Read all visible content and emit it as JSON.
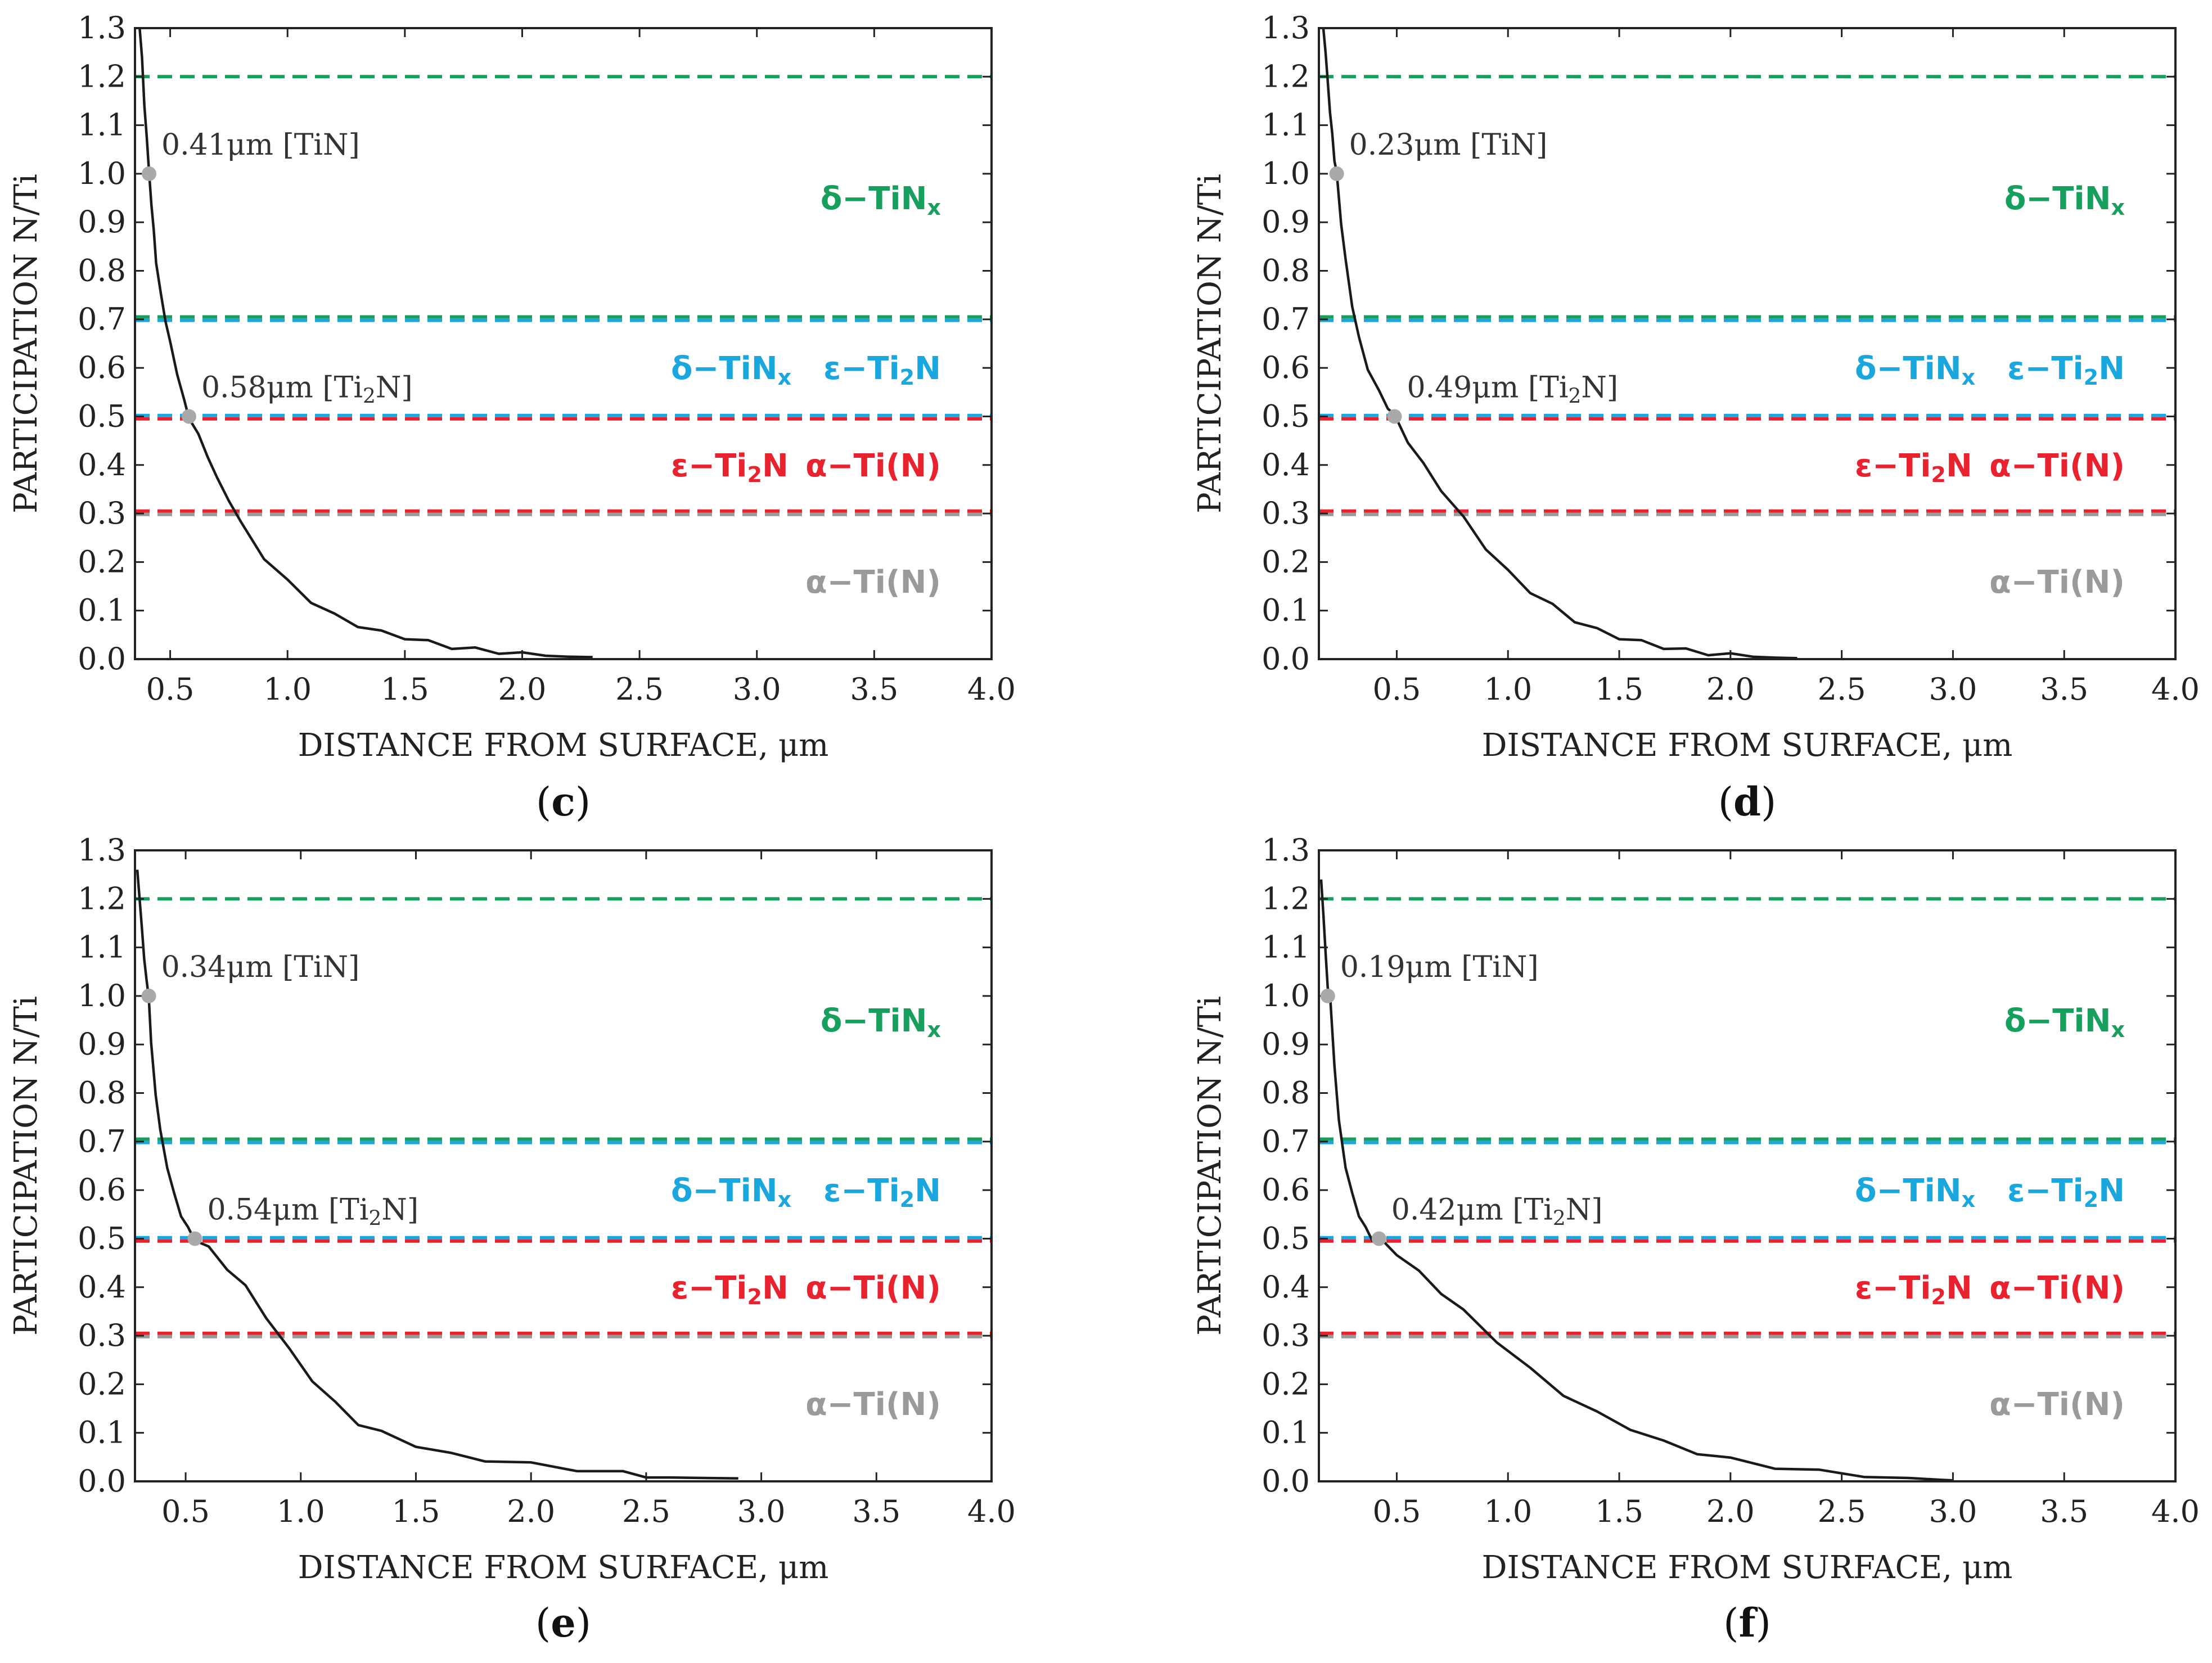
{
  "colors": {
    "green": "#17a05d",
    "cyan": "#1aa7de",
    "red": "#e8232f",
    "gray": "#9a9a9a",
    "curve": "#1a1a1a",
    "marker": "#a9a9a9"
  },
  "chart_data": [
    {
      "type": "line",
      "panel": "(c)",
      "panel_letter": "c",
      "xlabel": "DISTANCE FROM SURFACE, μm",
      "ylabel": "PARTICIPATION  N/Ti",
      "xlim": [
        0.35,
        4.0
      ],
      "ylim": [
        0.0,
        1.3
      ],
      "xticks": [
        "0.5",
        "1.0",
        "1.5",
        "2.0",
        "2.5",
        "3.0",
        "3.5",
        "4.0"
      ],
      "yticks": [
        "0.0",
        "0.1",
        "0.2",
        "0.3",
        "0.4",
        "0.5",
        "0.6",
        "0.7",
        "0.8",
        "0.9",
        "1.0",
        "1.1",
        "1.2",
        "1.3"
      ],
      "grid": false,
      "series": [
        {
          "x": [
            0.37,
            0.38,
            0.39,
            0.4,
            0.41,
            0.42,
            0.43,
            0.44,
            0.46,
            0.48,
            0.5,
            0.53,
            0.56,
            0.58,
            0.62,
            0.66,
            0.7,
            0.75,
            0.8,
            0.9,
            1.0,
            1.1,
            1.2,
            1.3,
            1.4,
            1.5,
            1.6,
            1.7,
            1.8,
            1.9,
            2.0,
            2.1,
            2.2,
            2.3
          ],
          "y": [
            1.3,
            1.24,
            1.14,
            1.08,
            1.0,
            0.94,
            0.88,
            0.82,
            0.75,
            0.7,
            0.65,
            0.59,
            0.53,
            0.5,
            0.46,
            0.42,
            0.37,
            0.33,
            0.28,
            0.21,
            0.16,
            0.12,
            0.09,
            0.07,
            0.055,
            0.045,
            0.035,
            0.025,
            0.02,
            0.015,
            0.01,
            0.007,
            0.005,
            0.004
          ]
        }
      ],
      "annotations": [
        {
          "x": 0.41,
          "y": 1.0,
          "text": "0.41μm [TiN]"
        },
        {
          "x": 0.58,
          "y": 0.5,
          "text": "0.58μm [Ti",
          "sub": "2",
          "tail": "N]"
        }
      ]
    },
    {
      "type": "line",
      "panel": "(d)",
      "panel_letter": "d",
      "xlabel": "DISTANCE FROM SURFACE, μm",
      "ylabel": "PARTICIPATION  N/Ti",
      "xlim": [
        0.15,
        4.0
      ],
      "ylim": [
        0.0,
        1.3
      ],
      "xticks": [
        "0.5",
        "1.0",
        "1.5",
        "2.0",
        "2.5",
        "3.0",
        "3.5",
        "4.0"
      ],
      "yticks": [
        "0.0",
        "0.1",
        "0.2",
        "0.3",
        "0.4",
        "0.5",
        "0.6",
        "0.7",
        "0.8",
        "0.9",
        "1.0",
        "1.1",
        "1.2",
        "1.3"
      ],
      "grid": false,
      "series": [
        {
          "x": [
            0.17,
            0.18,
            0.19,
            0.2,
            0.21,
            0.22,
            0.23,
            0.25,
            0.27,
            0.3,
            0.33,
            0.37,
            0.42,
            0.46,
            0.49,
            0.55,
            0.62,
            0.7,
            0.8,
            0.9,
            1.0,
            1.1,
            1.2,
            1.3,
            1.4,
            1.5,
            1.6,
            1.7,
            1.8,
            1.9,
            2.0,
            2.1,
            2.2,
            2.3
          ],
          "y": [
            1.3,
            1.25,
            1.19,
            1.13,
            1.08,
            1.03,
            1.0,
            0.9,
            0.82,
            0.73,
            0.66,
            0.6,
            0.55,
            0.52,
            0.5,
            0.45,
            0.4,
            0.35,
            0.29,
            0.23,
            0.18,
            0.14,
            0.11,
            0.08,
            0.06,
            0.045,
            0.035,
            0.025,
            0.018,
            0.012,
            0.008,
            0.005,
            0.003,
            0.002
          ]
        }
      ],
      "annotations": [
        {
          "x": 0.23,
          "y": 1.0,
          "text": "0.23μm [TiN]"
        },
        {
          "x": 0.49,
          "y": 0.5,
          "text": "0.49μm [Ti",
          "sub": "2",
          "tail": "N]"
        }
      ]
    },
    {
      "type": "line",
      "panel": "(e)",
      "panel_letter": "e",
      "xlabel": "DISTANCE FROM SURFACE, μm",
      "ylabel": "PARTICIPATION  N/Ti",
      "xlim": [
        0.28,
        4.0
      ],
      "ylim": [
        0.0,
        1.3
      ],
      "xticks": [
        "0.5",
        "1.0",
        "1.5",
        "2.0",
        "2.5",
        "3.0",
        "3.5",
        "4.0"
      ],
      "yticks": [
        "0.0",
        "0.1",
        "0.2",
        "0.3",
        "0.4",
        "0.5",
        "0.6",
        "0.7",
        "0.8",
        "0.9",
        "1.0",
        "1.1",
        "1.2",
        "1.3"
      ],
      "grid": false,
      "series": [
        {
          "x": [
            0.29,
            0.3,
            0.31,
            0.32,
            0.33,
            0.34,
            0.35,
            0.37,
            0.39,
            0.42,
            0.45,
            0.48,
            0.51,
            0.54,
            0.6,
            0.68,
            0.76,
            0.85,
            0.95,
            1.05,
            1.15,
            1.25,
            1.35,
            1.5,
            1.65,
            1.8,
            2.0,
            2.2,
            2.4,
            2.5,
            2.6,
            2.75,
            2.9
          ],
          "y": [
            1.26,
            1.2,
            1.14,
            1.08,
            1.03,
            1.0,
            0.9,
            0.8,
            0.72,
            0.65,
            0.59,
            0.55,
            0.52,
            0.5,
            0.48,
            0.44,
            0.4,
            0.34,
            0.27,
            0.21,
            0.16,
            0.12,
            0.1,
            0.075,
            0.055,
            0.045,
            0.035,
            0.025,
            0.017,
            0.012,
            0.008,
            0.007,
            0.006
          ]
        }
      ],
      "annotations": [
        {
          "x": 0.34,
          "y": 1.0,
          "text": "0.34μm [TiN]"
        },
        {
          "x": 0.54,
          "y": 0.5,
          "text": "0.54μm [Ti",
          "sub": "2",
          "tail": "N]"
        }
      ]
    },
    {
      "type": "line",
      "panel": "(f)",
      "panel_letter": "f",
      "xlabel": "DISTANCE FROM SURFACE, μm",
      "ylabel": "PARTICIPATION  N/Ti",
      "xlim": [
        0.15,
        4.0
      ],
      "ylim": [
        0.0,
        1.3
      ],
      "xticks": [
        "0.5",
        "1.0",
        "1.5",
        "2.0",
        "2.5",
        "3.0",
        "3.5",
        "4.0"
      ],
      "yticks": [
        "0.0",
        "0.1",
        "0.2",
        "0.3",
        "0.4",
        "0.5",
        "0.6",
        "0.7",
        "0.8",
        "0.9",
        "1.0",
        "1.1",
        "1.2",
        "1.3"
      ],
      "grid": false,
      "series": [
        {
          "x": [
            0.16,
            0.17,
            0.18,
            0.19,
            0.2,
            0.22,
            0.24,
            0.27,
            0.3,
            0.33,
            0.36,
            0.39,
            0.42,
            0.5,
            0.6,
            0.7,
            0.8,
            0.95,
            1.1,
            1.25,
            1.4,
            1.55,
            1.7,
            1.85,
            2.0,
            2.2,
            2.4,
            2.6,
            2.8,
            2.95,
            3.0
          ],
          "y": [
            1.24,
            1.17,
            1.09,
            1.02,
            1.0,
            0.86,
            0.74,
            0.65,
            0.59,
            0.55,
            0.52,
            0.5,
            0.5,
            0.47,
            0.43,
            0.39,
            0.35,
            0.29,
            0.23,
            0.18,
            0.14,
            0.11,
            0.08,
            0.06,
            0.045,
            0.03,
            0.02,
            0.013,
            0.007,
            0.003,
            0.002
          ]
        }
      ],
      "annotations": [
        {
          "x": 0.19,
          "y": 1.0,
          "text": "0.19μm [TiN]"
        },
        {
          "x": 0.42,
          "y": 0.5,
          "text": "0.42μm [Ti",
          "sub": "2",
          "tail": "N]"
        }
      ]
    }
  ],
  "reference_lines": [
    {
      "y": 1.2,
      "color": "green"
    },
    {
      "y": 0.705,
      "color": "green"
    },
    {
      "y": 0.698,
      "color": "cyan"
    },
    {
      "y": 0.502,
      "color": "cyan"
    },
    {
      "y": 0.495,
      "color": "red"
    },
    {
      "y": 0.305,
      "color": "red"
    },
    {
      "y": 0.298,
      "color": "gray"
    }
  ],
  "phase_labels": [
    {
      "y": 0.95,
      "color": "green",
      "anchor": "right",
      "parts": [
        {
          "t": "δ−TiN"
        },
        {
          "t": "x",
          "sub": true
        }
      ]
    },
    {
      "y": 0.6,
      "color": "cyan",
      "anchor": "left",
      "parts": [
        {
          "t": "δ−TiN"
        },
        {
          "t": "x",
          "sub": true
        }
      ]
    },
    {
      "y": 0.6,
      "color": "cyan",
      "anchor": "right",
      "parts": [
        {
          "t": "ε−Ti"
        },
        {
          "t": "2",
          "sub": true
        },
        {
          "t": "N"
        }
      ]
    },
    {
      "y": 0.4,
      "color": "red",
      "anchor": "left",
      "parts": [
        {
          "t": "ε−Ti"
        },
        {
          "t": "2",
          "sub": true
        },
        {
          "t": "N"
        }
      ]
    },
    {
      "y": 0.4,
      "color": "red",
      "anchor": "right",
      "parts": [
        {
          "t": "α−Ti(N)"
        }
      ]
    },
    {
      "y": 0.16,
      "color": "gray",
      "anchor": "right",
      "parts": [
        {
          "t": "α−Ti(N)"
        }
      ]
    }
  ]
}
